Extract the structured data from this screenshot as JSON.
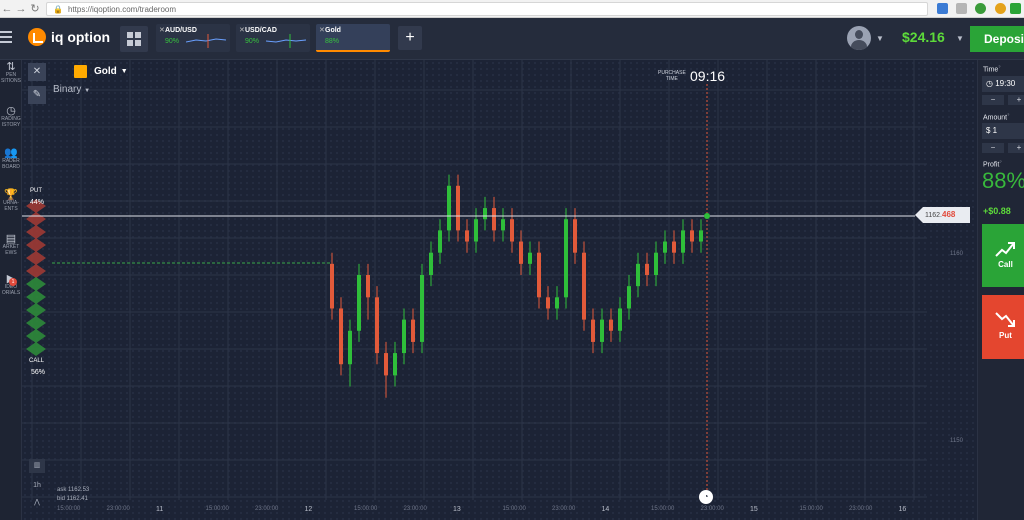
{
  "browser": {
    "url": "https://iqoption.com/traderoom"
  },
  "app": {
    "logo_text": "iq option"
  },
  "asset_tabs": [
    {
      "name": "AUD/USD",
      "pct": "90%"
    },
    {
      "name": "USD/CAD",
      "pct": "90%"
    },
    {
      "name": "Gold",
      "pct": "88%"
    }
  ],
  "header": {
    "balance": "$24.16",
    "deposit_label": "Deposit"
  },
  "sidebar": {
    "items": [
      {
        "label": "PEN\nSITIONS",
        "icon": "arrows-icon"
      },
      {
        "label": "RADING\nISTORY",
        "icon": "clock-icon"
      },
      {
        "label": "RADER\nBOARD",
        "icon": "people-icon"
      },
      {
        "label": "URNA-\nENTS",
        "icon": "trophy-icon"
      },
      {
        "label": "ARKET\nEWS",
        "icon": "news-icon"
      },
      {
        "label": "IDEO\nORIALS",
        "icon": "play-icon"
      }
    ],
    "badge": "1"
  },
  "chart": {
    "asset": "Gold",
    "mode": "Binary",
    "purchase_time_label": "PURCHASE\nTIME",
    "purchase_time": "09:16",
    "put_label": "PUT",
    "put_pct": "44%",
    "call_label": "CALL",
    "call_pct": "56%",
    "price_prefix": "1162.",
    "price_suffix": "468",
    "y_labels": [
      "1160",
      "1150"
    ],
    "ask": "ask 1162.53",
    "bid": "bid 1162.41",
    "period": "1h",
    "x_labels": [
      "15:00:00",
      "23:00:00",
      "11",
      "15:00:00",
      "23:00:00",
      "12",
      "15:00:00",
      "23:00:00",
      "13",
      "15:00:00",
      "23:00:00",
      "14",
      "15:00:00",
      "23:00:00",
      "15",
      "15:00:00",
      "23:00:00",
      "16"
    ]
  },
  "chart_data": {
    "type": "candlestick",
    "title": "Gold",
    "ylim": [
      1146,
      1172
    ],
    "candles": [
      [
        1160,
        1156,
        1161,
        1155
      ],
      [
        1156,
        1151,
        1157,
        1150
      ],
      [
        1151,
        1154,
        1155,
        1149
      ],
      [
        1154,
        1159,
        1160,
        1153
      ],
      [
        1159,
        1157,
        1160,
        1155
      ],
      [
        1157,
        1152,
        1158,
        1151
      ],
      [
        1152,
        1150,
        1153,
        1148
      ],
      [
        1150,
        1152,
        1153,
        1149
      ],
      [
        1152,
        1155,
        1156,
        1151
      ],
      [
        1155,
        1153,
        1156,
        1152
      ],
      [
        1153,
        1159,
        1160,
        1152
      ],
      [
        1159,
        1161,
        1162,
        1158
      ],
      [
        1161,
        1163,
        1164,
        1160
      ],
      [
        1163,
        1167,
        1168,
        1162
      ],
      [
        1167,
        1163,
        1168,
        1162
      ],
      [
        1163,
        1162,
        1164,
        1161
      ],
      [
        1162,
        1164,
        1165,
        1161
      ],
      [
        1164,
        1165,
        1166,
        1163
      ],
      [
        1165,
        1163,
        1166,
        1162
      ],
      [
        1163,
        1164,
        1165,
        1162
      ],
      [
        1164,
        1162,
        1165,
        1161
      ],
      [
        1162,
        1160,
        1163,
        1159
      ],
      [
        1160,
        1161,
        1162,
        1159
      ],
      [
        1161,
        1157,
        1162,
        1156
      ],
      [
        1157,
        1156,
        1158,
        1155
      ],
      [
        1156,
        1157,
        1158,
        1155
      ],
      [
        1157,
        1164,
        1165,
        1156
      ],
      [
        1164,
        1161,
        1165,
        1160
      ],
      [
        1161,
        1155,
        1162,
        1154
      ],
      [
        1155,
        1153,
        1156,
        1152
      ],
      [
        1153,
        1155,
        1156,
        1152
      ],
      [
        1155,
        1154,
        1156,
        1153
      ],
      [
        1154,
        1156,
        1157,
        1153
      ],
      [
        1156,
        1158,
        1159,
        1155
      ],
      [
        1158,
        1160,
        1161,
        1157
      ],
      [
        1160,
        1159,
        1161,
        1158
      ],
      [
        1159,
        1161,
        1162,
        1158
      ],
      [
        1161,
        1162,
        1163,
        1160
      ],
      [
        1162,
        1161,
        1163,
        1160
      ],
      [
        1161,
        1163,
        1164,
        1160
      ],
      [
        1163,
        1162,
        1164,
        1161
      ],
      [
        1162,
        1163,
        1164,
        1161
      ]
    ]
  },
  "right_panel": {
    "time_label": "Time",
    "time_value": "19:30",
    "amount_label": "Amount",
    "amount_value": "$ 1",
    "profit_label": "Profit",
    "profit_pct": "88%",
    "profit_amount": "+$0.88",
    "call_label": "Call",
    "put_label": "Put"
  },
  "colors": {
    "up": "#2fbf3a",
    "down": "#e25a3a",
    "accent": "#ff8a00",
    "call": "#2aa437",
    "put": "#e4462f"
  }
}
